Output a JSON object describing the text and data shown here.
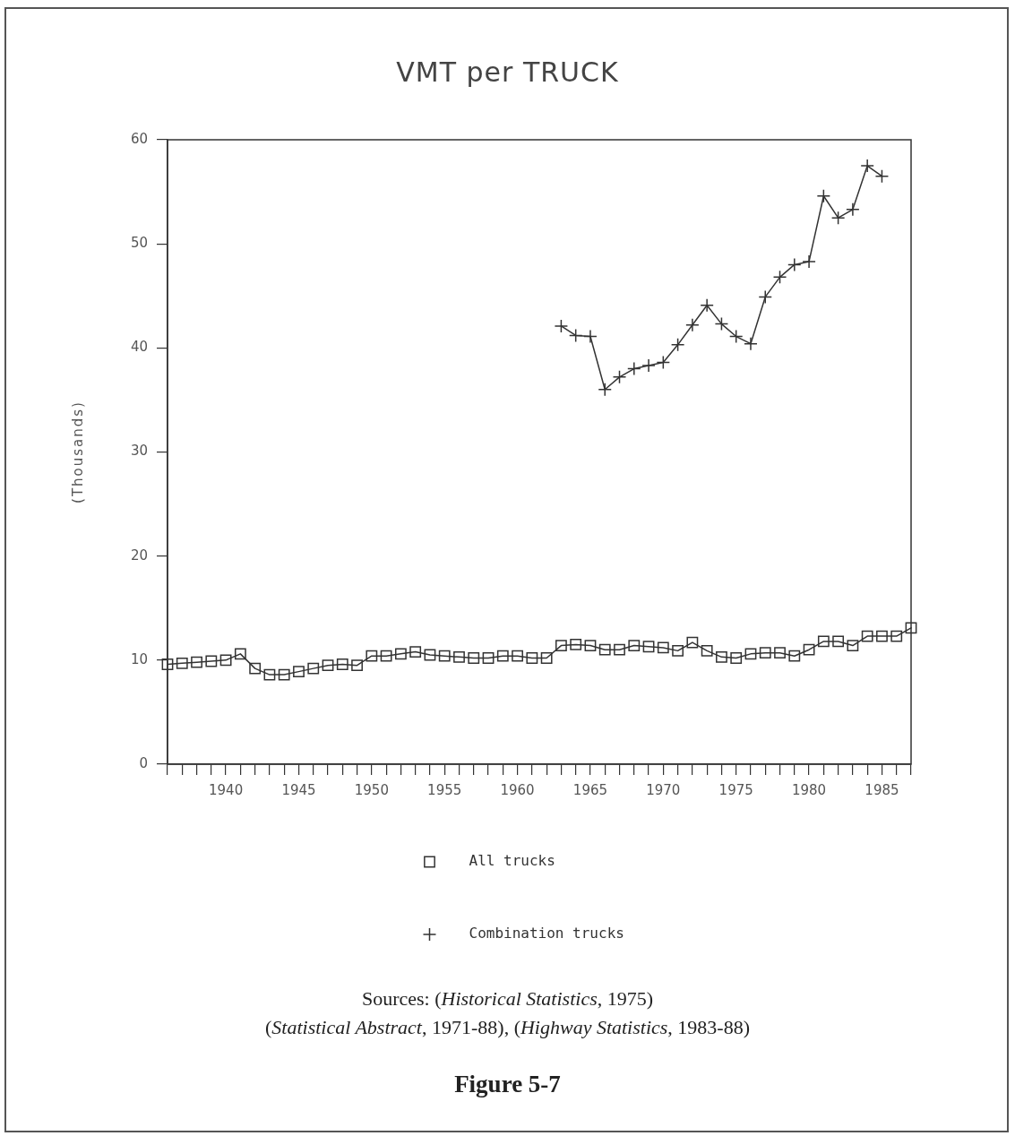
{
  "chart_data": {
    "type": "line",
    "title": "VMT per TRUCK",
    "ylabel": "(Thousands)",
    "xlim": [
      1936,
      1987
    ],
    "xticks": [
      {
        "value": 1936,
        "label": null
      },
      {
        "value": 1937,
        "label": null
      },
      {
        "value": 1938,
        "label": null
      },
      {
        "value": 1939,
        "label": null
      },
      1940,
      {
        "value": 1941,
        "label": null
      },
      {
        "value": 1942,
        "label": null
      },
      {
        "value": 1943,
        "label": null
      },
      {
        "value": 1944,
        "label": null
      },
      1945,
      {
        "value": 1946,
        "label": null
      },
      {
        "value": 1947,
        "label": null
      },
      {
        "value": 1948,
        "label": null
      },
      {
        "value": 1949,
        "label": null
      },
      1950,
      {
        "value": 1951,
        "label": null
      },
      {
        "value": 1952,
        "label": null
      },
      {
        "value": 1953,
        "label": null
      },
      {
        "value": 1954,
        "label": null
      },
      1955,
      {
        "value": 1956,
        "label": null
      },
      {
        "value": 1957,
        "label": null
      },
      {
        "value": 1958,
        "label": null
      },
      {
        "value": 1959,
        "label": null
      },
      1960,
      {
        "value": 1961,
        "label": null
      },
      {
        "value": 1962,
        "label": null
      },
      {
        "value": 1963,
        "label": null
      },
      {
        "value": 1964,
        "label": null
      },
      1965,
      {
        "value": 1966,
        "label": null
      },
      {
        "value": 1967,
        "label": null
      },
      {
        "value": 1968,
        "label": null
      },
      {
        "value": 1969,
        "label": null
      },
      1970,
      {
        "value": 1971,
        "label": null
      },
      {
        "value": 1972,
        "label": null
      },
      {
        "value": 1973,
        "label": null
      },
      {
        "value": 1974,
        "label": null
      },
      1975,
      {
        "value": 1976,
        "label": null
      },
      {
        "value": 1977,
        "label": null
      },
      {
        "value": 1978,
        "label": null
      },
      {
        "value": 1979,
        "label": null
      },
      1980,
      {
        "value": 1981,
        "label": null
      },
      {
        "value": 1982,
        "label": null
      },
      {
        "value": 1983,
        "label": null
      },
      {
        "value": 1984,
        "label": null
      },
      1985,
      {
        "value": 1986,
        "label": null
      },
      {
        "value": 1987,
        "label": null
      }
    ],
    "ylim": [
      0,
      60
    ],
    "yticks": [
      0,
      10,
      20,
      30,
      40,
      50,
      60
    ],
    "grid": false,
    "legend": "bottom",
    "line_style": "solid",
    "series": [
      {
        "name": "All trucks",
        "color": "#333333",
        "marker": "square",
        "x": [
          1936,
          1937,
          1938,
          1939,
          1940,
          1941,
          1942,
          1943,
          1944,
          1945,
          1946,
          1947,
          1948,
          1949,
          1950,
          1951,
          1952,
          1953,
          1954,
          1955,
          1956,
          1957,
          1958,
          1959,
          1960,
          1961,
          1962,
          1963,
          1964,
          1965,
          1966,
          1967,
          1968,
          1969,
          1970,
          1971,
          1972,
          1973,
          1974,
          1975,
          1976,
          1977,
          1978,
          1979,
          1980,
          1981,
          1982,
          1983,
          1984,
          1985,
          1986,
          1987
        ],
        "values": [
          9.6,
          9.7,
          9.8,
          9.9,
          10.0,
          10.6,
          9.2,
          8.6,
          8.6,
          8.9,
          9.2,
          9.5,
          9.6,
          9.5,
          10.4,
          10.4,
          10.6,
          10.8,
          10.5,
          10.4,
          10.3,
          10.2,
          10.2,
          10.4,
          10.4,
          10.2,
          10.2,
          11.4,
          11.5,
          11.4,
          11.0,
          11.0,
          11.4,
          11.3,
          11.2,
          10.9,
          11.7,
          10.9,
          10.3,
          10.2,
          10.6,
          10.7,
          10.7,
          10.4,
          11.0,
          11.8,
          11.8,
          11.4,
          12.3,
          12.3,
          12.3,
          13.1
        ]
      },
      {
        "name": "Combination trucks",
        "color": "#333333",
        "marker": "cross",
        "x": [
          1963,
          1964,
          1965,
          1966,
          1967,
          1968,
          1969,
          1970,
          1971,
          1972,
          1973,
          1974,
          1975,
          1976,
          1977,
          1978,
          1979,
          1980,
          1981,
          1982,
          1983,
          1984,
          1985
        ],
        "values": [
          42.1,
          41.2,
          41.1,
          36.0,
          37.2,
          38.0,
          38.3,
          38.6,
          40.3,
          42.2,
          44.1,
          42.3,
          41.1,
          40.4,
          44.9,
          46.8,
          48.0,
          48.3,
          54.6,
          52.5,
          53.3,
          57.5,
          56.5
        ]
      }
    ],
    "annotations": [
      "Sources: (Historical Statistics, 1975)",
      "(Statistical Abstract, 1971-88), (Highway Statistics, 1983-88)",
      "Figure 5-7"
    ]
  }
}
